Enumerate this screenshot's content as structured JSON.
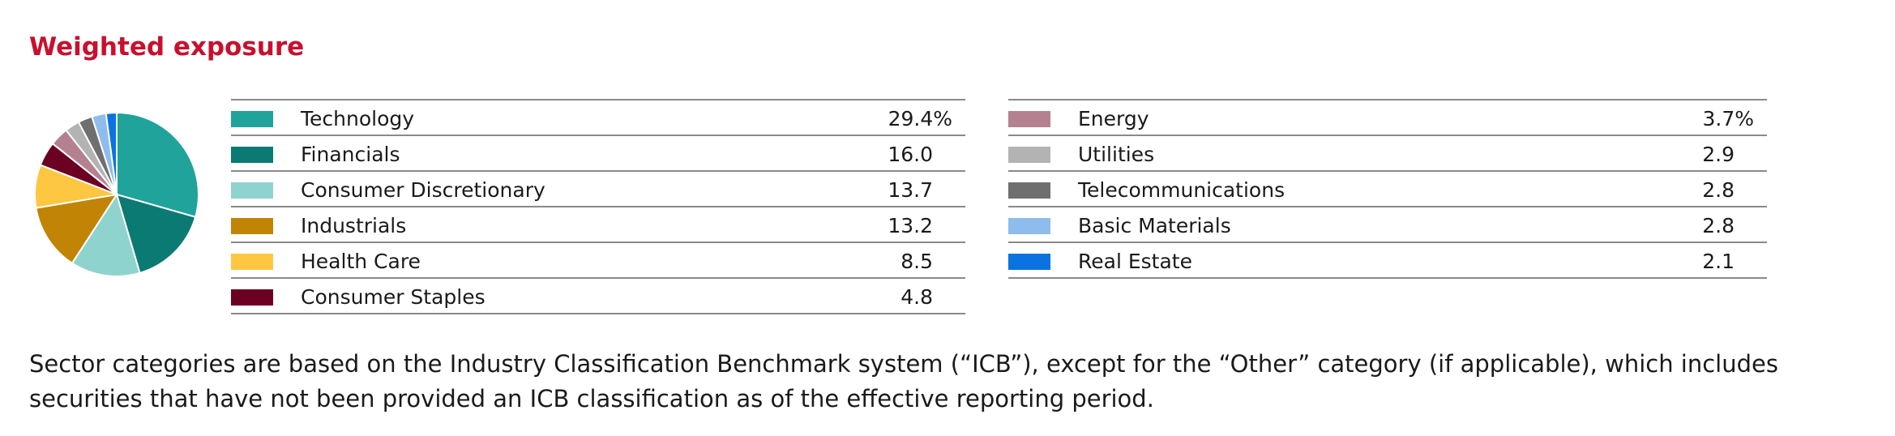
{
  "title": "Weighted exposure",
  "chart_data": {
    "type": "pie",
    "title": "Weighted exposure",
    "unit": "%",
    "slices": [
      {
        "label": "Technology",
        "value": 29.4,
        "display": "29.4%",
        "color": "#1fa39b"
      },
      {
        "label": "Financials",
        "value": 16.0,
        "display": "16.0",
        "color": "#0b7a73"
      },
      {
        "label": "Consumer Discretionary",
        "value": 13.7,
        "display": "13.7",
        "color": "#8fd3cf"
      },
      {
        "label": "Industrials",
        "value": 13.2,
        "display": "13.2",
        "color": "#c18405"
      },
      {
        "label": "Health Care",
        "value": 8.5,
        "display": "8.5",
        "color": "#fdc741"
      },
      {
        "label": "Consumer Staples",
        "value": 4.8,
        "display": "4.8",
        "color": "#6b0022"
      },
      {
        "label": "Energy",
        "value": 3.7,
        "display": "3.7%",
        "color": "#b48191"
      },
      {
        "label": "Utilities",
        "value": 2.9,
        "display": "2.9",
        "color": "#b3b3b3"
      },
      {
        "label": "Telecommunications",
        "value": 2.8,
        "display": "2.8",
        "color": "#6f6f6f"
      },
      {
        "label": "Basic Materials",
        "value": 2.8,
        "display": "2.8",
        "color": "#8ebcec"
      },
      {
        "label": "Real Estate",
        "value": 2.1,
        "display": "2.1",
        "color": "#0b73e0"
      }
    ]
  },
  "footnote": "Sector categories are based on the Industry Classification Benchmark system (“ICB”), except for the “Other” category (if applicable), which includes securities that have not been provided an ICB classification as of the effective reporting period."
}
